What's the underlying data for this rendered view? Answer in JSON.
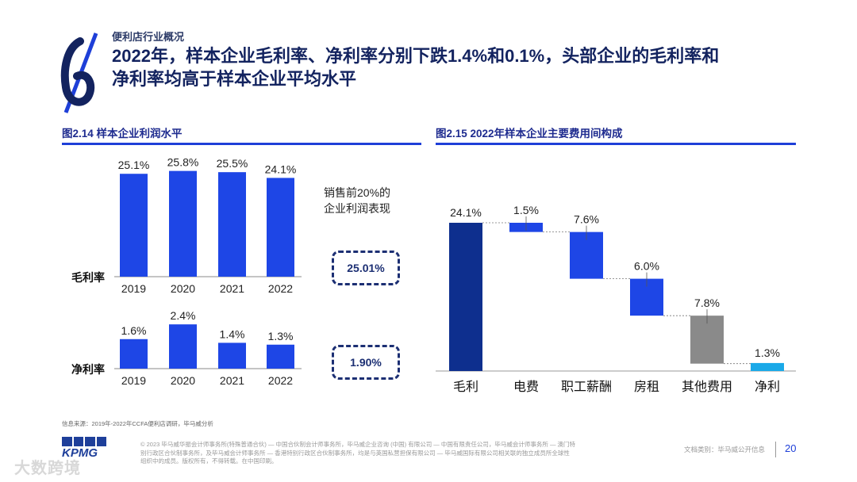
{
  "header": {
    "section": "便利店行业概况",
    "title_line1": "2022年，样本企业毛利率、净利率分别下跌1.4%和0.1%，头部企业的毛利率和",
    "title_line2": "净利率均高于样本企业平均水平"
  },
  "left_chart_title": "图2.14 样本企业利润水平",
  "right_chart_title": "图2.15 2022年样本企业主要费用间构成",
  "top_note_line1": "销售前20%的",
  "top_note_line2": "企业利润表现",
  "kpi": {
    "gross": "25.01%",
    "net": "1.90%"
  },
  "chart_data": [
    {
      "type": "bar",
      "title": "毛利率",
      "categories": [
        "2019",
        "2020",
        "2021",
        "2022"
      ],
      "values": [
        25.1,
        25.8,
        25.5,
        24.1
      ],
      "labels": [
        "25.1%",
        "25.8%",
        "25.5%",
        "24.1%"
      ],
      "ylim": [
        0,
        26.5
      ],
      "color": "#1e46e6"
    },
    {
      "type": "bar",
      "title": "净利率",
      "categories": [
        "2019",
        "2020",
        "2021",
        "2022"
      ],
      "values": [
        1.6,
        2.4,
        1.4,
        1.3
      ],
      "labels": [
        "1.6%",
        "2.4%",
        "1.4%",
        "1.3%"
      ],
      "ylim": [
        0,
        2.45
      ],
      "color": "#1e46e6"
    },
    {
      "type": "bar",
      "subtype": "waterfall",
      "title": "2022年样本企业主要费用间构成",
      "categories": [
        "毛利",
        "电费",
        "职工薪酬",
        "房租",
        "其他费用",
        "净利"
      ],
      "values": [
        24.1,
        1.5,
        7.6,
        6.0,
        7.8,
        1.3
      ],
      "labels": [
        "24.1%",
        "1.5%",
        "7.6%",
        "6.0%",
        "7.8%",
        "1.3%"
      ],
      "kinds": [
        "total",
        "decrease",
        "decrease",
        "decrease",
        "decrease",
        "total"
      ],
      "colors": [
        "#0e2f8e",
        "#1e46e6",
        "#1e46e6",
        "#1e46e6",
        "#8a8a8a",
        "#1aa9e8"
      ],
      "ylim": [
        0,
        24.1
      ]
    }
  ],
  "footer": {
    "source": "信息来源：2019年-2022年CCFA便利店调研，毕马威分析",
    "legal_line1": "© 2023 毕马威华振会计师事务所(特殊普通合伙) — 中国合伙制会计师事务所，毕马威企业咨询 (中国) 有限公司 — 中国有限责任公司，毕马威会计师事务所 — 澳门特",
    "legal_line2": "别行政区合伙制事务所，及毕马威会计师事务所 — 香港特别行政区合伙制事务所，均是与英国私营担保有限公司 — 毕马威国际有限公司相关联的独立成员所全球性",
    "legal_line3": "组织中的成员。版权所有，不得转载。在中国印刷。",
    "doc_type": "文档类别：毕马威公开信息",
    "page_number": "20",
    "logo": "KPMG",
    "watermark": "大数跨境"
  }
}
